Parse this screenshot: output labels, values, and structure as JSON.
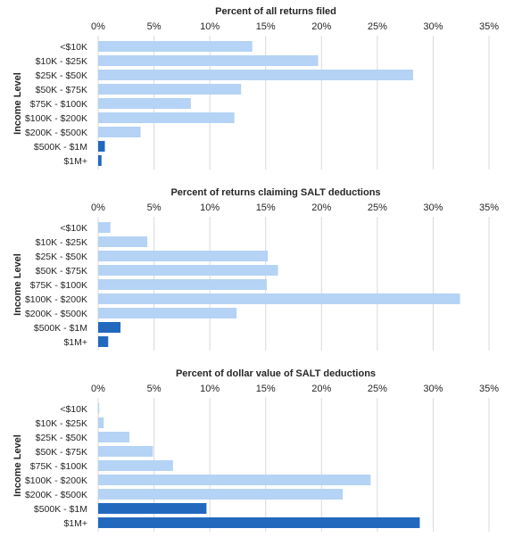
{
  "chart_data": [
    {
      "type": "bar",
      "orientation": "horizontal",
      "title": "Percent of all returns filed",
      "ylabel": "Income Level",
      "xlabel": "",
      "xlim": [
        0,
        35
      ],
      "x_ticks": [
        "0%",
        "5%",
        "10%",
        "15%",
        "20%",
        "25%",
        "30%",
        "35%"
      ],
      "x_axis_position": "top",
      "grid": true,
      "categories": [
        "<$10K",
        "$10K - $25K",
        "$25K - $50K",
        "$50K - $75K",
        "$75K - $100K",
        "$100K - $200K",
        "$200K - $500K",
        "$500K - $1M",
        "$1M+"
      ],
      "values": [
        13.8,
        19.7,
        28.2,
        12.8,
        8.3,
        12.2,
        3.8,
        0.6,
        0.3
      ],
      "bar_colors": [
        "#b4d3f5",
        "#b4d3f5",
        "#b4d3f5",
        "#b4d3f5",
        "#b4d3f5",
        "#b4d3f5",
        "#b4d3f5",
        "#2269be",
        "#2269be"
      ]
    },
    {
      "type": "bar",
      "orientation": "horizontal",
      "title": "Percent of returns claiming SALT deductions",
      "ylabel": "Income Level",
      "xlabel": "",
      "xlim": [
        0,
        35
      ],
      "x_ticks": [
        "0%",
        "5%",
        "10%",
        "15%",
        "20%",
        "25%",
        "30%",
        "35%"
      ],
      "x_axis_position": "top",
      "grid": true,
      "categories": [
        "<$10K",
        "$10K - $25K",
        "$25K - $50K",
        "$50K - $75K",
        "$75K - $100K",
        "$100K - $200K",
        "$200K - $500K",
        "$500K - $1M",
        "$1M+"
      ],
      "values": [
        1.1,
        4.4,
        15.2,
        16.1,
        15.1,
        32.4,
        12.4,
        2.0,
        0.9
      ],
      "bar_colors": [
        "#b4d3f5",
        "#b4d3f5",
        "#b4d3f5",
        "#b4d3f5",
        "#b4d3f5",
        "#b4d3f5",
        "#b4d3f5",
        "#2269be",
        "#2269be"
      ]
    },
    {
      "type": "bar",
      "orientation": "horizontal",
      "title": "Percent of dollar value of SALT deductions",
      "ylabel": "Income Level",
      "xlabel": "",
      "xlim": [
        0,
        35
      ],
      "x_ticks": [
        "0%",
        "5%",
        "10%",
        "15%",
        "20%",
        "25%",
        "30%",
        "35%"
      ],
      "x_axis_position": "top",
      "grid": true,
      "categories": [
        "<$10K",
        "$10K - $25K",
        "$25K - $50K",
        "$50K - $75K",
        "$75K - $100K",
        "$100K - $200K",
        "$200K - $500K",
        "$500K - $1M",
        "$1M+"
      ],
      "values": [
        0.1,
        0.5,
        2.8,
        4.9,
        6.7,
        24.4,
        21.9,
        9.7,
        28.8
      ],
      "bar_colors": [
        "#b4d3f5",
        "#b4d3f5",
        "#b4d3f5",
        "#b4d3f5",
        "#b4d3f5",
        "#b4d3f5",
        "#b4d3f5",
        "#2269be",
        "#2269be"
      ]
    }
  ]
}
